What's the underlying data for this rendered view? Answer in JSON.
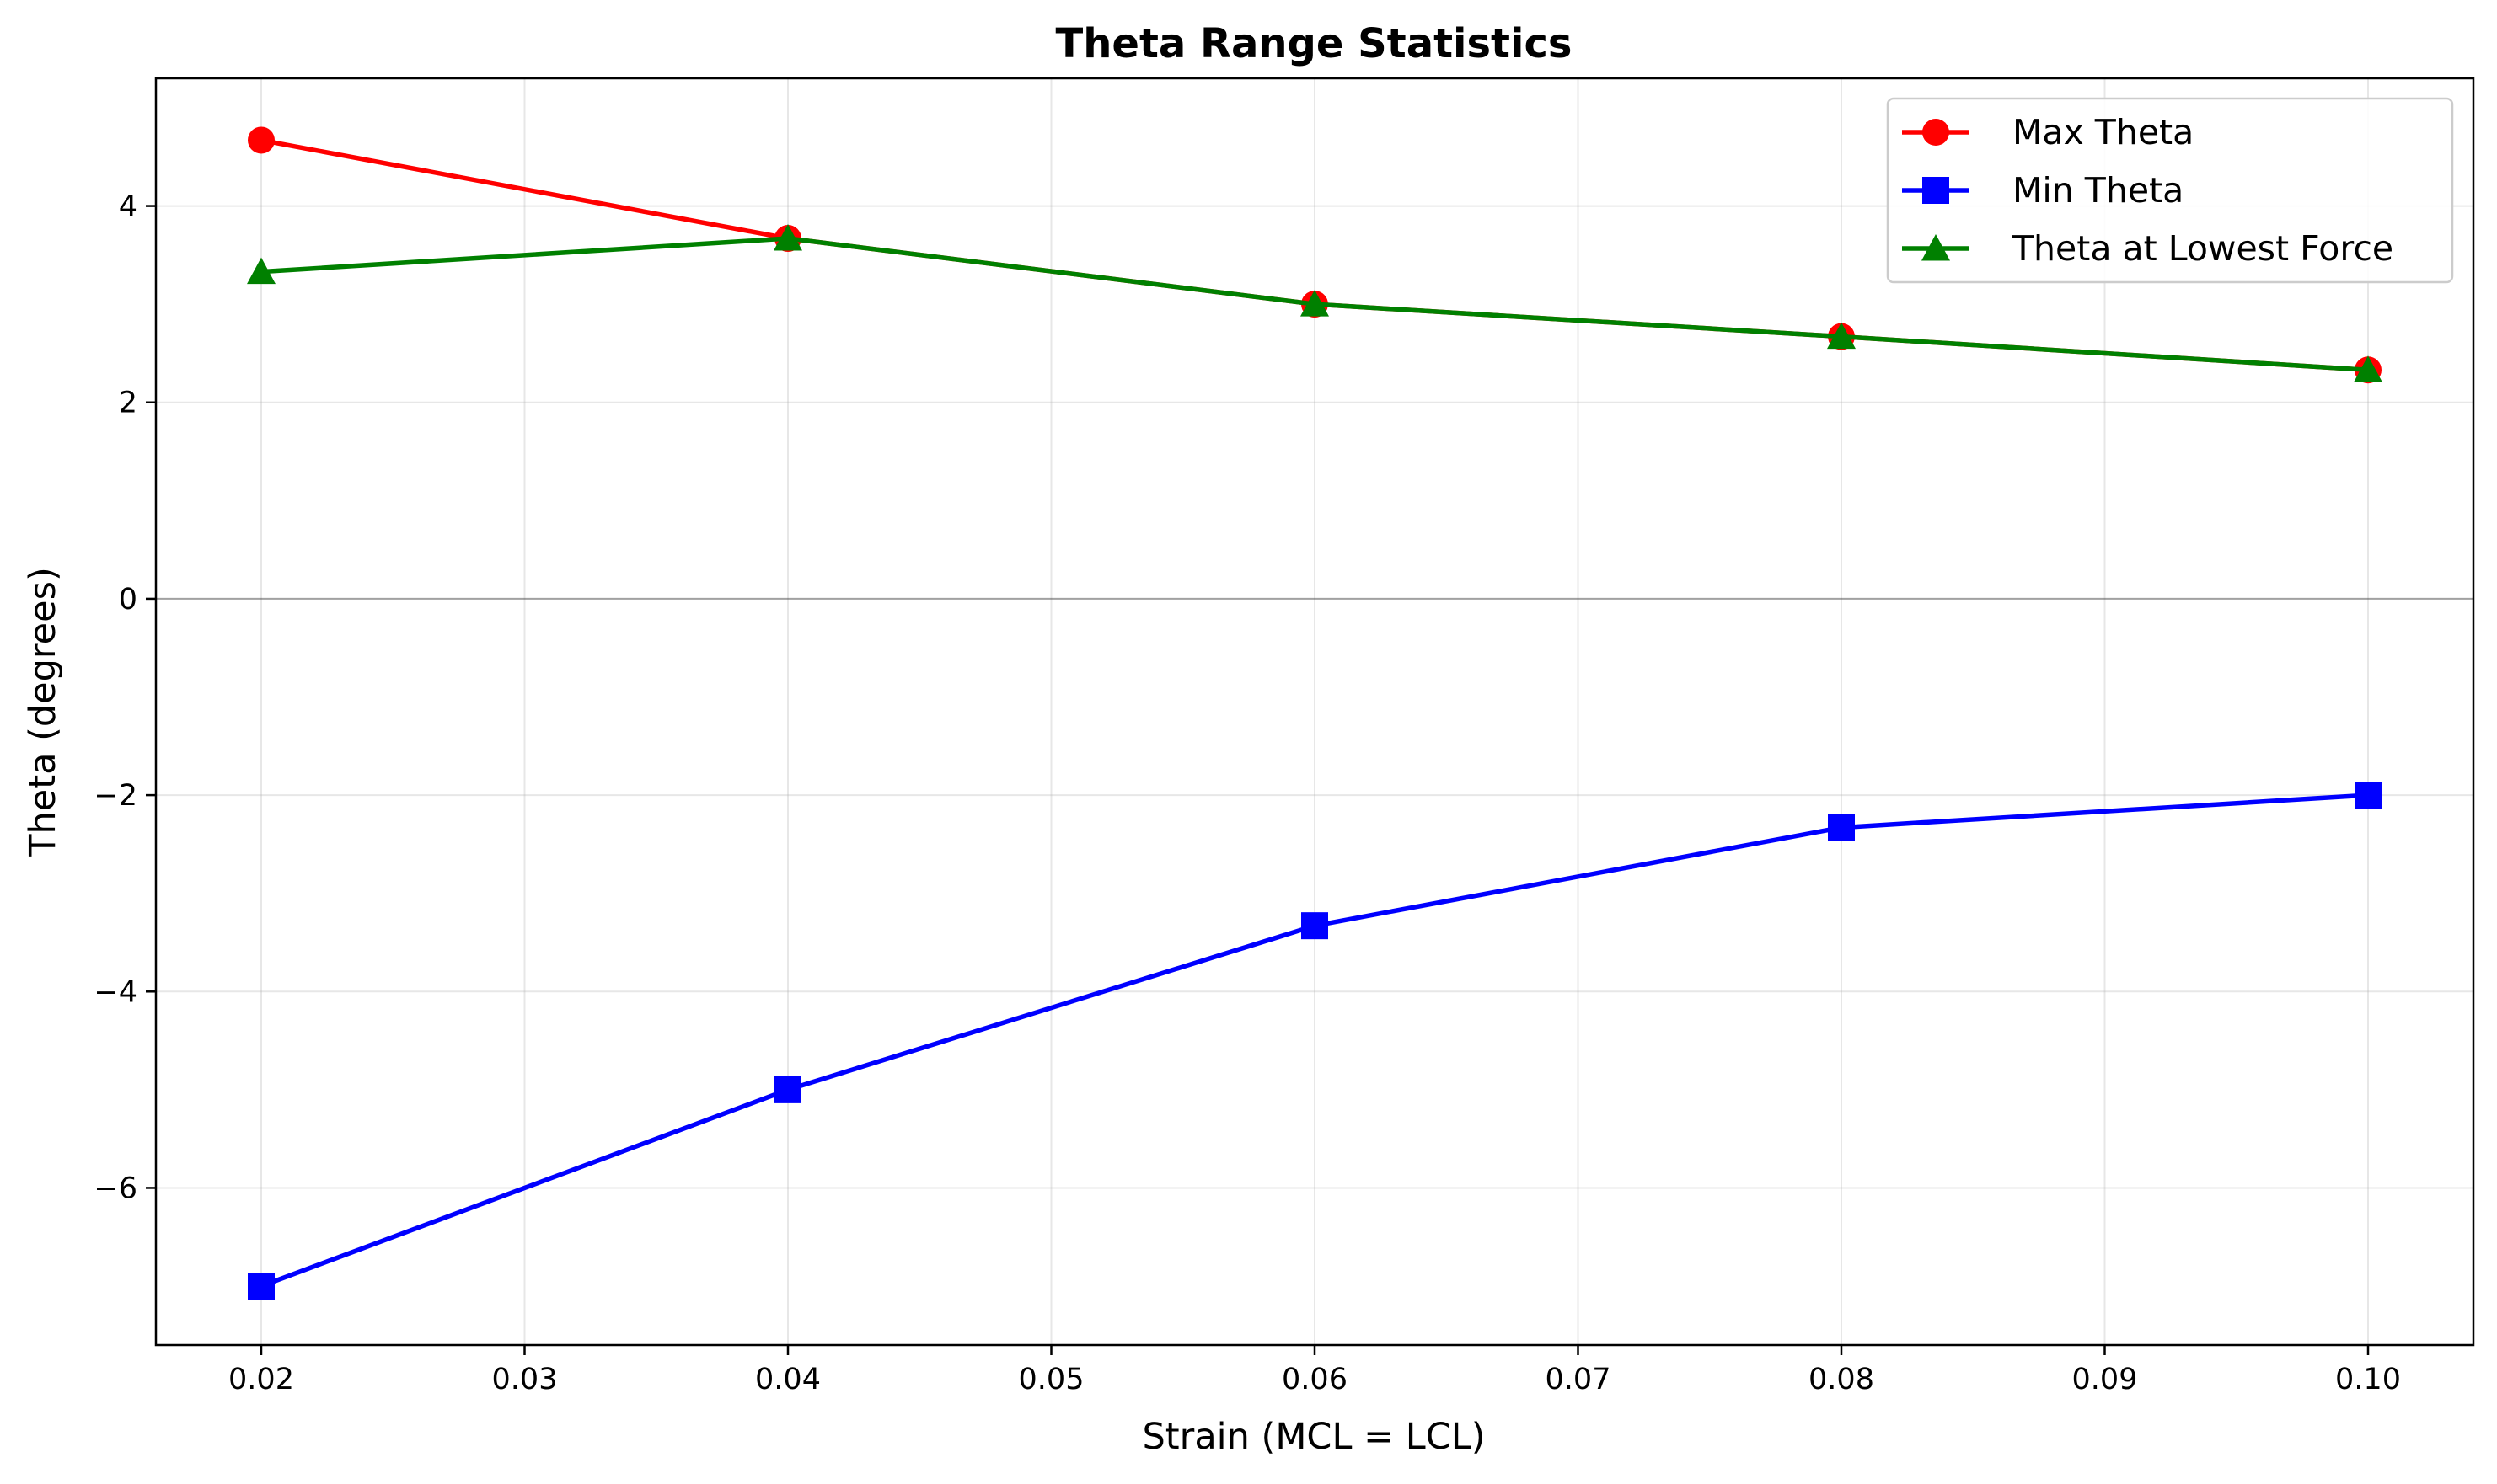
{
  "chart_data": {
    "type": "line",
    "title": "Theta Range Statistics",
    "xlabel": "Strain (MCL = LCL)",
    "ylabel": "Theta (degrees)",
    "xlim": [
      0.016,
      0.104
    ],
    "ylim": [
      -7.6,
      5.3
    ],
    "xticks": [
      0.02,
      0.03,
      0.04,
      0.05,
      0.06,
      0.07,
      0.08,
      0.09,
      0.1
    ],
    "xtick_labels": [
      "0.02",
      "0.03",
      "0.04",
      "0.05",
      "0.06",
      "0.07",
      "0.08",
      "0.09",
      "0.10"
    ],
    "yticks": [
      -6,
      -4,
      -2,
      0,
      2,
      4
    ],
    "ytick_labels": [
      "−6",
      "−4",
      "−2",
      "0",
      "2",
      "4"
    ],
    "grid": true,
    "zero_line": true,
    "legend_position": "top-right",
    "x": [
      0.02,
      0.04,
      0.06,
      0.08,
      0.1
    ],
    "series": [
      {
        "name": "Max Theta",
        "values": [
          4.67,
          3.67,
          3.0,
          2.67,
          2.33
        ],
        "color": "#ff0000",
        "marker": "circle"
      },
      {
        "name": "Min Theta",
        "values": [
          -7.0,
          -5.0,
          -3.33,
          -2.33,
          -2.0
        ],
        "color": "#0000ff",
        "marker": "square"
      },
      {
        "name": "Theta at Lowest Force",
        "values": [
          3.33,
          3.67,
          3.0,
          2.67,
          2.33
        ],
        "color": "#008000",
        "marker": "triangle"
      }
    ]
  }
}
